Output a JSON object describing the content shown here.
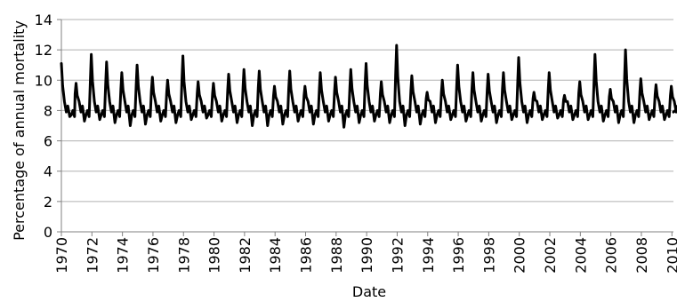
{
  "chart_data": {
    "type": "line",
    "title": "",
    "xlabel": "Date",
    "ylabel": "Percentage of annual mortality",
    "xlim": [
      1970,
      2010.1
    ],
    "ylim": [
      0,
      14
    ],
    "yticks": [
      0,
      2,
      4,
      6,
      8,
      10,
      12,
      14
    ],
    "xticks": [
      "1970",
      "1972",
      "1974",
      "1976",
      "1978",
      "1980",
      "1982",
      "1984",
      "1986",
      "1988",
      "1990",
      "1992",
      "1994",
      "1996",
      "1998",
      "2000",
      "2002",
      "2004",
      "2006",
      "2008",
      "2010"
    ],
    "grid": "horizontal",
    "line_color": "#000000",
    "series": [
      {
        "peaks": [
          [
            1970.0,
            11.1
          ],
          [
            1970.96,
            9.8
          ],
          [
            1971.96,
            11.7
          ],
          [
            1972.96,
            11.2
          ],
          [
            1973.96,
            10.5
          ],
          [
            1974.96,
            11.0
          ],
          [
            1975.96,
            10.2
          ],
          [
            1976.96,
            10.0
          ],
          [
            1977.96,
            11.6
          ],
          [
            1978.96,
            9.9
          ],
          [
            1979.96,
            9.8
          ],
          [
            1980.96,
            10.4
          ],
          [
            1981.96,
            10.7
          ],
          [
            1982.96,
            10.6
          ],
          [
            1983.96,
            9.6
          ],
          [
            1984.96,
            10.6
          ],
          [
            1985.96,
            9.6
          ],
          [
            1986.96,
            10.5
          ],
          [
            1987.96,
            10.2
          ],
          [
            1988.96,
            10.7
          ],
          [
            1989.96,
            11.1
          ],
          [
            1990.96,
            9.9
          ],
          [
            1991.96,
            12.3
          ],
          [
            1992.96,
            10.3
          ],
          [
            1993.96,
            9.2
          ],
          [
            1994.96,
            10.0
          ],
          [
            1995.96,
            11.0
          ],
          [
            1996.96,
            10.5
          ],
          [
            1997.96,
            10.4
          ],
          [
            1998.96,
            10.5
          ],
          [
            1999.96,
            11.5
          ],
          [
            2000.96,
            9.2
          ],
          [
            2001.96,
            10.5
          ],
          [
            2002.96,
            9.0
          ],
          [
            2003.96,
            9.9
          ],
          [
            2004.96,
            11.7
          ],
          [
            2005.96,
            9.4
          ],
          [
            2006.96,
            12.0
          ],
          [
            2007.96,
            10.1
          ],
          [
            2008.96,
            9.7
          ],
          [
            2009.96,
            9.6
          ]
        ],
        "troughs": [
          7.6,
          7.3,
          7.4,
          7.2,
          7.0,
          7.1,
          7.3,
          7.2,
          7.4,
          7.5,
          7.3,
          7.2,
          7.0,
          7.0,
          7.1,
          7.3,
          7.1,
          7.3,
          6.9,
          7.2,
          7.3,
          7.2,
          7.0,
          7.1,
          7.2,
          7.4,
          7.3,
          7.3,
          7.2,
          7.4,
          7.2,
          7.4,
          7.5,
          7.4,
          7.4,
          7.3,
          7.2,
          7.2,
          7.4,
          7.4,
          7.5
        ],
        "end_value": 7.9
      }
    ]
  }
}
